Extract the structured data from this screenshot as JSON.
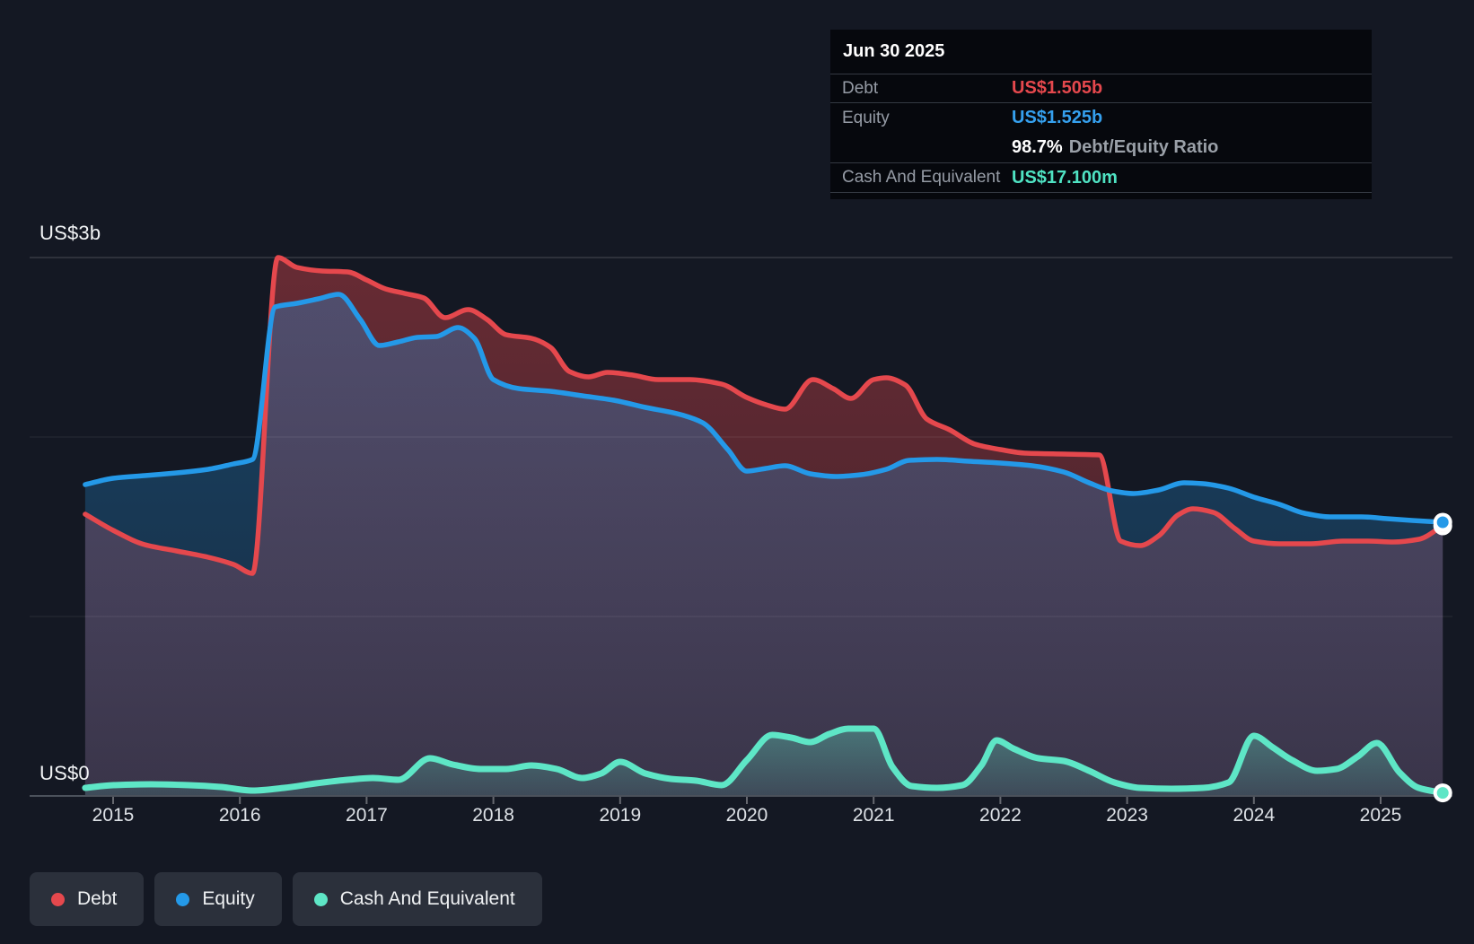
{
  "tooltip": {
    "date": "Jun 30 2025",
    "rows": {
      "debt": {
        "label": "Debt",
        "value": "US$1.505b"
      },
      "equity": {
        "label": "Equity",
        "value": "US$1.525b"
      },
      "ratio": {
        "value": "98.7%",
        "label": "Debt/Equity Ratio"
      },
      "cash": {
        "label": "Cash And Equivalent",
        "value": "US$17.100m"
      }
    }
  },
  "legend": {
    "debt": {
      "label": "Debt",
      "color": "#e5484d"
    },
    "equity": {
      "label": "Equity",
      "color": "#2499e8"
    },
    "cash": {
      "label": "Cash And Equivalent",
      "color": "#5ee6c6"
    }
  },
  "chart_data": {
    "type": "area",
    "title": "",
    "xlabel": "",
    "ylabel": "US$ billions",
    "ylim": [
      0,
      3
    ],
    "grid": true,
    "legend_position": "bottom-left",
    "x_axis": {
      "ticks": [
        "2015",
        "2016",
        "2017",
        "2018",
        "2019",
        "2020",
        "2021",
        "2022",
        "2023",
        "2024",
        "2025"
      ]
    },
    "y_axis": {
      "top_label": "US$3b",
      "bottom_label": "US$0",
      "min": 0,
      "max": 3
    },
    "series": [
      {
        "name": "Debt",
        "color": "#e5484d",
        "unit": "US$ billions",
        "points": [
          [
            2014.78,
            1.57
          ],
          [
            2015.0,
            1.48
          ],
          [
            2015.25,
            1.4
          ],
          [
            2015.5,
            1.365
          ],
          [
            2015.75,
            1.33
          ],
          [
            2015.95,
            1.29
          ],
          [
            2016.1,
            1.24
          ],
          [
            2016.3,
            3.0
          ],
          [
            2016.45,
            2.945
          ],
          [
            2016.65,
            2.925
          ],
          [
            2016.85,
            2.92
          ],
          [
            2017.0,
            2.875
          ],
          [
            2017.15,
            2.825
          ],
          [
            2017.3,
            2.8
          ],
          [
            2017.45,
            2.775
          ],
          [
            2017.62,
            2.665
          ],
          [
            2017.8,
            2.71
          ],
          [
            2017.95,
            2.655
          ],
          [
            2018.1,
            2.57
          ],
          [
            2018.3,
            2.55
          ],
          [
            2018.45,
            2.5
          ],
          [
            2018.6,
            2.365
          ],
          [
            2018.75,
            2.335
          ],
          [
            2018.9,
            2.36
          ],
          [
            2019.1,
            2.345
          ],
          [
            2019.3,
            2.32
          ],
          [
            2019.55,
            2.32
          ],
          [
            2019.8,
            2.295
          ],
          [
            2020.0,
            2.22
          ],
          [
            2020.15,
            2.18
          ],
          [
            2020.3,
            2.155
          ],
          [
            2020.52,
            2.32
          ],
          [
            2020.68,
            2.27
          ],
          [
            2020.82,
            2.215
          ],
          [
            2021.0,
            2.32
          ],
          [
            2021.1,
            2.33
          ],
          [
            2021.25,
            2.29
          ],
          [
            2021.42,
            2.1
          ],
          [
            2021.6,
            2.04
          ],
          [
            2021.8,
            1.96
          ],
          [
            2022.0,
            1.93
          ],
          [
            2022.2,
            1.91
          ],
          [
            2022.5,
            1.905
          ],
          [
            2022.78,
            1.9
          ],
          [
            2022.95,
            1.42
          ],
          [
            2023.1,
            1.395
          ],
          [
            2023.25,
            1.45
          ],
          [
            2023.4,
            1.565
          ],
          [
            2023.52,
            1.6
          ],
          [
            2023.68,
            1.58
          ],
          [
            2023.85,
            1.49
          ],
          [
            2024.0,
            1.42
          ],
          [
            2024.2,
            1.405
          ],
          [
            2024.45,
            1.405
          ],
          [
            2024.7,
            1.42
          ],
          [
            2024.9,
            1.42
          ],
          [
            2025.1,
            1.415
          ],
          [
            2025.3,
            1.43
          ],
          [
            2025.49,
            1.505
          ]
        ]
      },
      {
        "name": "Equity",
        "color": "#2499e8",
        "unit": "US$ billions",
        "points": [
          [
            2014.78,
            1.735
          ],
          [
            2015.0,
            1.77
          ],
          [
            2015.25,
            1.785
          ],
          [
            2015.5,
            1.8
          ],
          [
            2015.75,
            1.82
          ],
          [
            2015.95,
            1.85
          ],
          [
            2016.1,
            1.875
          ],
          [
            2016.28,
            2.725
          ],
          [
            2016.45,
            2.745
          ],
          [
            2016.62,
            2.77
          ],
          [
            2016.78,
            2.795
          ],
          [
            2016.95,
            2.655
          ],
          [
            2017.1,
            2.51
          ],
          [
            2017.25,
            2.53
          ],
          [
            2017.4,
            2.555
          ],
          [
            2017.55,
            2.56
          ],
          [
            2017.72,
            2.61
          ],
          [
            2017.85,
            2.55
          ],
          [
            2018.0,
            2.32
          ],
          [
            2018.2,
            2.27
          ],
          [
            2018.45,
            2.255
          ],
          [
            2018.7,
            2.23
          ],
          [
            2018.95,
            2.205
          ],
          [
            2019.2,
            2.165
          ],
          [
            2019.45,
            2.13
          ],
          [
            2019.65,
            2.08
          ],
          [
            2019.85,
            1.93
          ],
          [
            2020.0,
            1.81
          ],
          [
            2020.15,
            1.825
          ],
          [
            2020.3,
            1.84
          ],
          [
            2020.5,
            1.795
          ],
          [
            2020.7,
            1.78
          ],
          [
            2020.9,
            1.79
          ],
          [
            2021.1,
            1.82
          ],
          [
            2021.28,
            1.87
          ],
          [
            2021.5,
            1.875
          ],
          [
            2021.75,
            1.865
          ],
          [
            2022.0,
            1.855
          ],
          [
            2022.25,
            1.84
          ],
          [
            2022.5,
            1.805
          ],
          [
            2022.7,
            1.745
          ],
          [
            2022.88,
            1.7
          ],
          [
            2023.05,
            1.685
          ],
          [
            2023.25,
            1.705
          ],
          [
            2023.45,
            1.745
          ],
          [
            2023.6,
            1.74
          ],
          [
            2023.8,
            1.715
          ],
          [
            2024.0,
            1.665
          ],
          [
            2024.2,
            1.625
          ],
          [
            2024.4,
            1.575
          ],
          [
            2024.6,
            1.555
          ],
          [
            2024.85,
            1.555
          ],
          [
            2025.05,
            1.545
          ],
          [
            2025.25,
            1.535
          ],
          [
            2025.49,
            1.525
          ]
        ]
      },
      {
        "name": "Cash And Equivalent",
        "color": "#5ee6c6",
        "unit": "US$ billions",
        "points": [
          [
            2014.78,
            0.045
          ],
          [
            2015.0,
            0.06
          ],
          [
            2015.3,
            0.065
          ],
          [
            2015.6,
            0.06
          ],
          [
            2015.85,
            0.05
          ],
          [
            2016.1,
            0.03
          ],
          [
            2016.35,
            0.045
          ],
          [
            2016.6,
            0.07
          ],
          [
            2016.85,
            0.09
          ],
          [
            2017.05,
            0.1
          ],
          [
            2017.25,
            0.09
          ],
          [
            2017.5,
            0.21
          ],
          [
            2017.68,
            0.175
          ],
          [
            2017.9,
            0.15
          ],
          [
            2018.1,
            0.15
          ],
          [
            2018.3,
            0.17
          ],
          [
            2018.5,
            0.15
          ],
          [
            2018.7,
            0.1
          ],
          [
            2018.85,
            0.125
          ],
          [
            2019.0,
            0.19
          ],
          [
            2019.2,
            0.125
          ],
          [
            2019.4,
            0.095
          ],
          [
            2019.6,
            0.085
          ],
          [
            2019.8,
            0.06
          ],
          [
            2020.0,
            0.2
          ],
          [
            2020.2,
            0.34
          ],
          [
            2020.35,
            0.325
          ],
          [
            2020.5,
            0.3
          ],
          [
            2020.65,
            0.345
          ],
          [
            2020.8,
            0.375
          ],
          [
            2021.0,
            0.375
          ],
          [
            2021.15,
            0.16
          ],
          [
            2021.3,
            0.055
          ],
          [
            2021.5,
            0.045
          ],
          [
            2021.7,
            0.06
          ],
          [
            2021.85,
            0.17
          ],
          [
            2021.97,
            0.31
          ],
          [
            2022.1,
            0.265
          ],
          [
            2022.3,
            0.21
          ],
          [
            2022.5,
            0.195
          ],
          [
            2022.7,
            0.14
          ],
          [
            2022.9,
            0.075
          ],
          [
            2023.1,
            0.045
          ],
          [
            2023.35,
            0.04
          ],
          [
            2023.6,
            0.045
          ],
          [
            2023.8,
            0.075
          ],
          [
            2024.0,
            0.335
          ],
          [
            2024.15,
            0.27
          ],
          [
            2024.3,
            0.2
          ],
          [
            2024.5,
            0.14
          ],
          [
            2024.65,
            0.15
          ],
          [
            2024.82,
            0.22
          ],
          [
            2024.97,
            0.295
          ],
          [
            2025.15,
            0.13
          ],
          [
            2025.3,
            0.045
          ],
          [
            2025.49,
            0.017
          ]
        ]
      }
    ]
  }
}
